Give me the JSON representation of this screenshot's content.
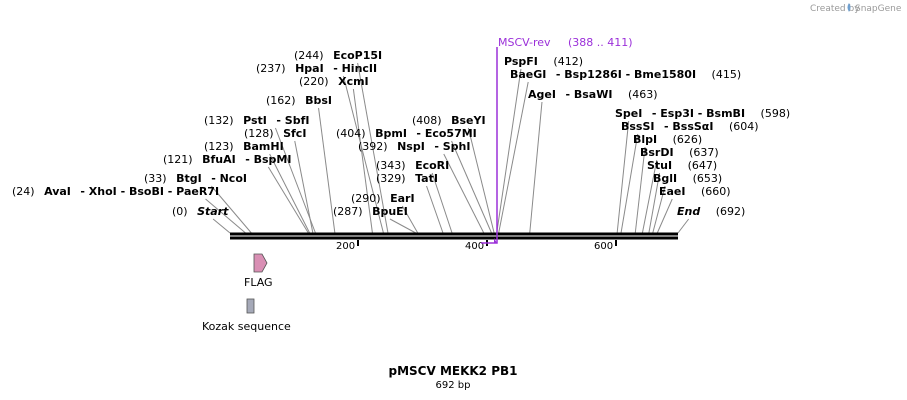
{
  "header": {
    "credit": "Created by",
    "brand": "SnapGene"
  },
  "map": {
    "name": "pMSCV MEKK2 PB1",
    "length_label": "692 bp",
    "length": 692,
    "ticks": [
      "200",
      "400",
      "600"
    ]
  },
  "sites": [
    {
      "name": "Start",
      "pos": "(0)",
      "bp": 0
    },
    {
      "name": "AvaI",
      "alts": "- XhoI - BsoBI - PaeR7I",
      "pos": "(24)",
      "bp": 24
    },
    {
      "name": "BtgI",
      "alts": "- NcoI",
      "pos": "(33)",
      "bp": 33
    },
    {
      "name": "BfuAI",
      "alts": "- BspMI",
      "pos": "(121)",
      "bp": 121
    },
    {
      "name": "BamHI",
      "pos": "(123)",
      "bp": 123
    },
    {
      "name": "SfcI",
      "pos": "(128)",
      "bp": 128
    },
    {
      "name": "PstI",
      "alts": "- SbfI",
      "pos": "(132)",
      "bp": 132
    },
    {
      "name": "BbsI",
      "pos": "(162)",
      "bp": 162
    },
    {
      "name": "XcmI",
      "pos": "(220)",
      "bp": 220
    },
    {
      "name": "HpaI",
      "alts": "- HincII",
      "pos": "(237)",
      "bp": 237
    },
    {
      "name": "EcoP15I",
      "pos": "(244)",
      "bp": 244
    },
    {
      "name": "BpuEI",
      "pos": "(287)",
      "bp": 287
    },
    {
      "name": "EarI",
      "pos": "(290)",
      "bp": 290
    },
    {
      "name": "TatI",
      "pos": "(329)",
      "bp": 329
    },
    {
      "name": "EcoRI",
      "pos": "(343)",
      "bp": 343
    },
    {
      "name": "NspI",
      "alts": "- SphI",
      "pos": "(392)",
      "bp": 392
    },
    {
      "name": "BpmI",
      "alts": "- Eco57MI",
      "pos": "(404)",
      "bp": 404
    },
    {
      "name": "BseYI",
      "pos": "(408)",
      "bp": 408
    },
    {
      "name": "PspFI",
      "pos": "(412)",
      "bp": 412
    },
    {
      "name": "BaeGI",
      "alts": "- Bsp1286I - Bme1580I",
      "pos": "(415)",
      "bp": 415
    },
    {
      "name": "AgeI",
      "alts": "- BsaWI",
      "pos": "(463)",
      "bp": 463
    },
    {
      "name": "SpeI",
      "alts": "- Esp3I - BsmBI",
      "pos": "(598)",
      "bp": 598
    },
    {
      "name": "BssSI",
      "alts": "- BssSαI",
      "pos": "(604)",
      "bp": 604
    },
    {
      "name": "BlpI",
      "pos": "(626)",
      "bp": 626
    },
    {
      "name": "BsrDI",
      "pos": "(637)",
      "bp": 637
    },
    {
      "name": "StuI",
      "pos": "(647)",
      "bp": 647
    },
    {
      "name": "BglI",
      "pos": "(653)",
      "bp": 653
    },
    {
      "name": "EaeI",
      "pos": "(660)",
      "bp": 660
    },
    {
      "name": "End",
      "pos": "(692)",
      "bp": 692
    }
  ],
  "primer": {
    "name": "MSCV-rev",
    "range": "(388 .. 411)",
    "color": "#9b30d9"
  },
  "features": [
    {
      "name": "FLAG",
      "color": "#d98fb4"
    },
    {
      "name": "Kozak sequence",
      "color": "#a5a9b8"
    }
  ]
}
